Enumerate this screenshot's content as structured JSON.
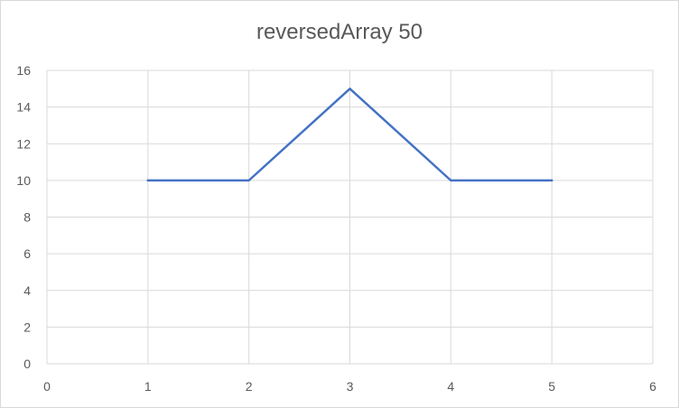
{
  "chart_data": {
    "type": "line",
    "title": "reversedArray 50",
    "xlabel": "",
    "ylabel": "",
    "xlim": [
      0,
      6
    ],
    "ylim": [
      0,
      16
    ],
    "x_ticks": [
      0,
      1,
      2,
      3,
      4,
      5,
      6
    ],
    "y_ticks": [
      0,
      2,
      4,
      6,
      8,
      10,
      12,
      14,
      16
    ],
    "grid": true,
    "legend": "none",
    "series": [
      {
        "color": "#4472c4",
        "x": [
          1,
          2,
          3,
          4,
          5
        ],
        "y": [
          10,
          10,
          15,
          10,
          10
        ]
      }
    ]
  }
}
